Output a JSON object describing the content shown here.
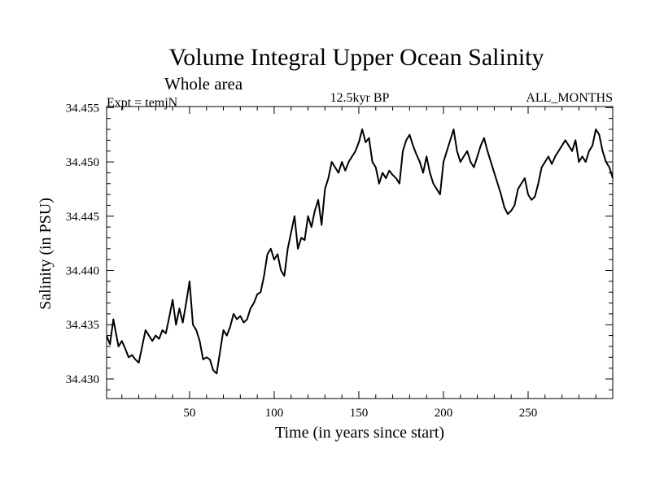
{
  "chart_data": {
    "type": "line",
    "title": "Volume Integral Upper Ocean Salinity",
    "subtitle": "Whole area",
    "left_label": "Expt = temjN",
    "center_label": "12.5kyr BP",
    "right_label": "ALL_MONTHS",
    "xlabel": "Time (in years since start)",
    "ylabel": "Salinity (in PSU)",
    "xlim": [
      1,
      300
    ],
    "ylim": [
      34.4282,
      34.4551
    ],
    "x_ticks": [
      50,
      100,
      150,
      200,
      250
    ],
    "x_tick_labels": [
      "50",
      "100",
      "150",
      "200",
      "250"
    ],
    "y_ticks": [
      34.43,
      34.435,
      34.44,
      34.445,
      34.45,
      34.455
    ],
    "y_tick_labels": [
      "34.430",
      "34.435",
      "34.440",
      "34.445",
      "34.450",
      "34.455"
    ],
    "series": [
      {
        "name": "salinity",
        "color": "#000000",
        "x": [
          1,
          3,
          5,
          8,
          10,
          12,
          14,
          16,
          18,
          20,
          22,
          24,
          26,
          28,
          30,
          32,
          34,
          36,
          38,
          40,
          42,
          44,
          46,
          48,
          50,
          52,
          54,
          56,
          58,
          60,
          62,
          64,
          66,
          68,
          70,
          72,
          74,
          76,
          78,
          80,
          82,
          84,
          86,
          88,
          90,
          92,
          94,
          96,
          98,
          100,
          102,
          104,
          106,
          108,
          110,
          112,
          114,
          116,
          118,
          120,
          122,
          124,
          126,
          128,
          130,
          132,
          134,
          136,
          138,
          140,
          142,
          144,
          146,
          148,
          150,
          152,
          154,
          156,
          158,
          160,
          162,
          164,
          166,
          168,
          170,
          172,
          174,
          176,
          178,
          180,
          182,
          184,
          186,
          188,
          190,
          192,
          194,
          196,
          198,
          200,
          202,
          204,
          206,
          208,
          210,
          212,
          214,
          216,
          218,
          220,
          222,
          224,
          226,
          228,
          230,
          232,
          234,
          236,
          238,
          240,
          242,
          244,
          246,
          248,
          250,
          252,
          254,
          256,
          258,
          260,
          262,
          264,
          266,
          268,
          270,
          272,
          274,
          276,
          278,
          280,
          282,
          284,
          286,
          288,
          290,
          292,
          294,
          296,
          298,
          300
        ],
        "values": [
          34.434,
          34.4332,
          34.4355,
          34.433,
          34.4335,
          34.4328,
          34.432,
          34.4322,
          34.4318,
          34.4315,
          34.433,
          34.4345,
          34.434,
          34.4335,
          34.434,
          34.4337,
          34.4345,
          34.4342,
          34.4357,
          34.4373,
          34.435,
          34.4365,
          34.4352,
          34.437,
          34.439,
          34.435,
          34.4345,
          34.4335,
          34.4318,
          34.432,
          34.4318,
          34.4308,
          34.4305,
          34.4325,
          34.4345,
          34.434,
          34.4348,
          34.436,
          34.4355,
          34.4358,
          34.4352,
          34.4355,
          34.4365,
          34.437,
          34.4378,
          34.438,
          34.4395,
          34.4415,
          34.442,
          34.441,
          34.4415,
          34.44,
          34.4395,
          34.442,
          34.4435,
          34.445,
          34.442,
          34.443,
          34.4428,
          34.445,
          34.444,
          34.4455,
          34.4465,
          34.4442,
          34.4475,
          34.4485,
          34.45,
          34.4495,
          34.449,
          34.45,
          34.4492,
          34.45,
          34.4505,
          34.451,
          34.4518,
          34.453,
          34.4518,
          34.4522,
          34.45,
          34.4495,
          34.448,
          34.449,
          34.4485,
          34.4492,
          34.4488,
          34.4485,
          34.448,
          34.451,
          34.452,
          34.4525,
          34.4515,
          34.4507,
          34.45,
          34.449,
          34.4505,
          34.449,
          34.448,
          34.4475,
          34.447,
          34.45,
          34.451,
          34.452,
          34.453,
          34.451,
          34.45,
          34.4505,
          34.451,
          34.45,
          34.4495,
          34.4505,
          34.4515,
          34.4522,
          34.451,
          34.45,
          34.449,
          34.448,
          34.447,
          34.4458,
          34.4452,
          34.4455,
          34.446,
          34.4475,
          34.448,
          34.4485,
          34.447,
          34.4465,
          34.4468,
          34.448,
          34.4495,
          34.45,
          34.4505,
          34.4498,
          34.4505,
          34.451,
          34.4515,
          34.452,
          34.4515,
          34.451,
          34.452,
          34.45,
          34.4505,
          34.45,
          34.451,
          34.4515,
          34.453,
          34.4525,
          34.451,
          34.45,
          34.4495,
          34.4485
        ]
      }
    ]
  }
}
